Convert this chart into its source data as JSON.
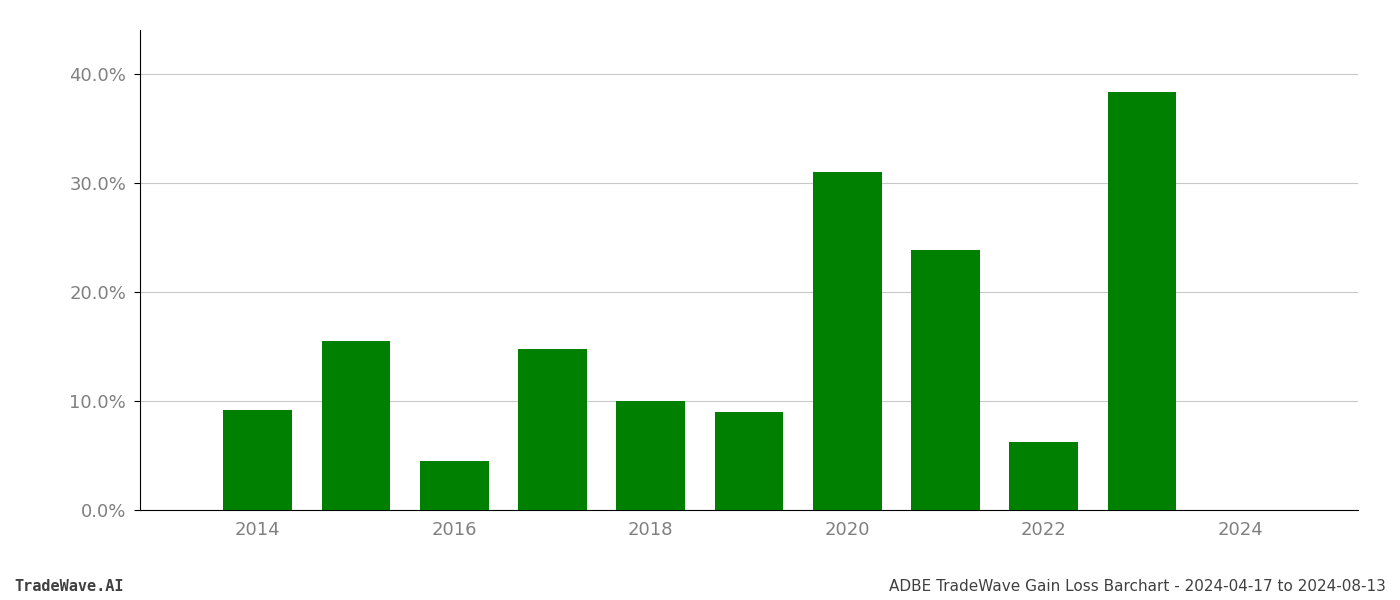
{
  "years": [
    2014,
    2015,
    2016,
    2017,
    2018,
    2019,
    2020,
    2021,
    2022,
    2023
  ],
  "values": [
    0.092,
    0.155,
    0.045,
    0.148,
    0.1,
    0.09,
    0.31,
    0.238,
    0.062,
    0.383
  ],
  "bar_color": "#008000",
  "ylim": [
    0,
    0.44
  ],
  "yticks": [
    0.0,
    0.1,
    0.2,
    0.3,
    0.4
  ],
  "ytick_labels": [
    "0.0%",
    "10.0%",
    "20.0%",
    "30.0%",
    "40.0%"
  ],
  "xtick_labels": [
    "2014",
    "2016",
    "2018",
    "2020",
    "2022",
    "2024"
  ],
  "xtick_positions": [
    2014,
    2016,
    2018,
    2020,
    2022,
    2024
  ],
  "footer_left": "TradeWave.AI",
  "footer_right": "ADBE TradeWave Gain Loss Barchart - 2024-04-17 to 2024-08-13",
  "bar_width": 0.7,
  "background_color": "#ffffff",
  "grid_color": "#c8c8c8",
  "text_color": "#808080",
  "footer_color": "#404040",
  "xlim_left": 2012.8,
  "xlim_right": 2025.2
}
